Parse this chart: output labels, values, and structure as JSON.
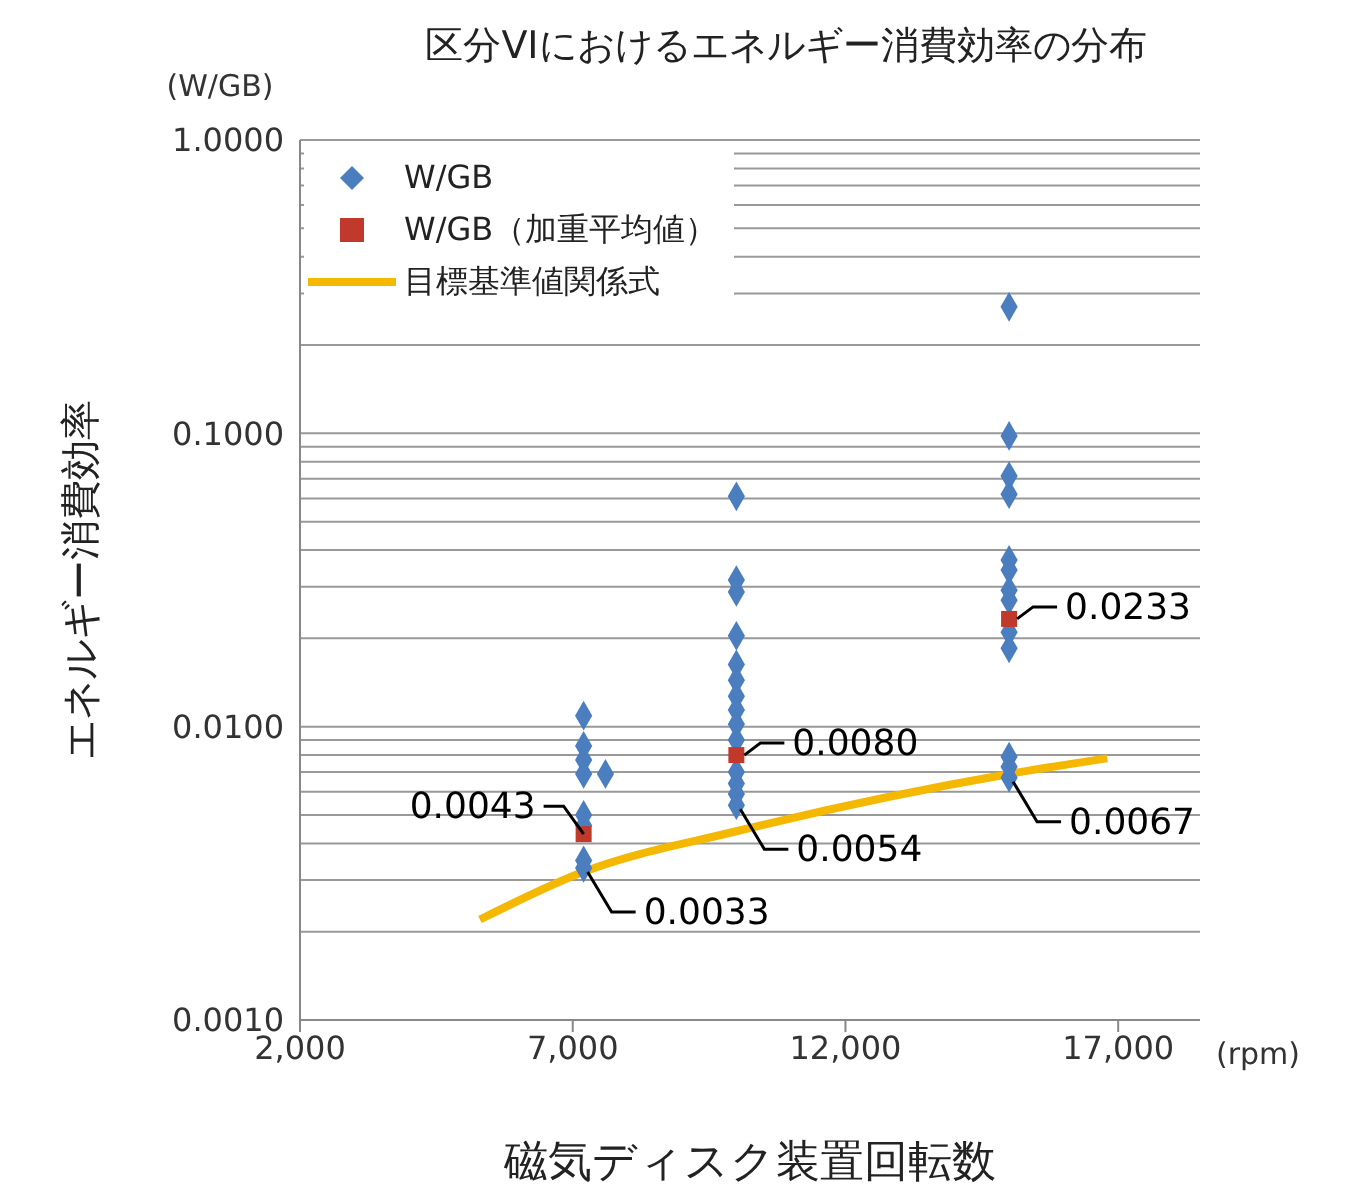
{
  "chart_data": {
    "type": "scatter",
    "title": "区分VIにおけるエネルギー消費効率の分布",
    "xlabel": "磁気ディスク装置回転数",
    "ylabel": "エネルギー消費効率",
    "log": "y",
    "grid": "y",
    "legend": "top left",
    "xlim": [
      2000,
      18500
    ],
    "xticks": [
      {
        "value": 2000,
        "label": "2,000"
      },
      {
        "value": 7000,
        "label": "7,000"
      },
      {
        "value": 12000,
        "label": "12,000"
      },
      {
        "value": 17000,
        "label": "17,000"
      }
    ],
    "ylim": [
      0.001,
      1
    ],
    "yticks": [
      {
        "value": 0.001,
        "label": "0.0010"
      },
      {
        "value": 0.002,
        "label": null
      },
      {
        "value": 0.003,
        "label": null
      },
      {
        "value": 0.004,
        "label": null
      },
      {
        "value": 0.005,
        "label": null
      },
      {
        "value": 0.006,
        "label": null
      },
      {
        "value": 0.007,
        "label": null
      },
      {
        "value": 0.008,
        "label": null
      },
      {
        "value": 0.009,
        "label": null
      },
      {
        "value": 0.01,
        "label": "0.0100"
      },
      {
        "value": 0.02,
        "label": null
      },
      {
        "value": 0.03,
        "label": null
      },
      {
        "value": 0.04,
        "label": null
      },
      {
        "value": 0.05,
        "label": null
      },
      {
        "value": 0.06,
        "label": null
      },
      {
        "value": 0.07,
        "label": null
      },
      {
        "value": 0.08,
        "label": null
      },
      {
        "value": 0.09,
        "label": null
      },
      {
        "value": 0.1,
        "label": "0.1000"
      },
      {
        "value": 0.2,
        "label": null
      },
      {
        "value": 0.3,
        "label": null
      },
      {
        "value": 0.4,
        "label": null
      },
      {
        "value": 0.5,
        "label": null
      },
      {
        "value": 0.6,
        "label": null
      },
      {
        "value": 0.7,
        "label": null
      },
      {
        "value": 0.8,
        "label": null
      },
      {
        "value": 0.9,
        "label": null
      },
      {
        "value": 1,
        "label": "1.0000"
      }
    ],
    "series": [
      {
        "name": "W/GB",
        "marker": "diamond",
        "color": "#4a7ebf",
        "x": [
          7200,
          7200,
          7200,
          7200,
          7600,
          7200,
          7200,
          7200,
          7200,
          10000,
          10000,
          10000,
          10000,
          10000,
          10000,
          10000,
          10000,
          10000,
          10000,
          10000,
          10000,
          10000,
          10000,
          15000,
          15000,
          15000,
          15000,
          15000,
          15000,
          15000,
          15000,
          15000,
          15000,
          15000,
          15000,
          15000
        ],
        "values": [
          0.0109,
          0.0086,
          0.0077,
          0.0069,
          0.0069,
          0.005,
          0.0046,
          0.0035,
          0.0033,
          0.061,
          0.0316,
          0.0288,
          0.0204,
          0.0163,
          0.0144,
          0.0127,
          0.0114,
          0.0102,
          0.009,
          0.007,
          0.0064,
          0.0059,
          0.0054,
          0.27,
          0.098,
          0.0715,
          0.062,
          0.037,
          0.0342,
          0.0292,
          0.027,
          0.021,
          0.0185,
          0.0079,
          0.0073,
          0.0067
        ]
      },
      {
        "name": "W/GB（加重平均値）",
        "marker": "square",
        "color": "#c0392b",
        "x": [
          7200,
          10000,
          15000
        ],
        "values": [
          0.0043,
          0.008,
          0.0233
        ]
      },
      {
        "name": "目標基準値関係式",
        "type": "line",
        "marker": "none",
        "color": "#f5b800",
        "x": [
          5300,
          7200,
          10000,
          15000,
          16800
        ],
        "values": [
          0.0022,
          0.0032,
          0.0044,
          0.0069,
          0.0078
        ]
      }
    ],
    "annotations": [
      "(W/GB)",
      "(rpm)",
      {
        "text": "0.0043",
        "x": 7200,
        "y": 0.0043
      },
      {
        "text": "0.0033",
        "x": 7200,
        "y": 0.0033
      },
      {
        "text": "0.0080",
        "x": 10000,
        "y": 0.008
      },
      {
        "text": "0.0054",
        "x": 10000,
        "y": 0.0054
      },
      {
        "text": "0.0233",
        "x": 15000,
        "y": 0.0233
      },
      {
        "text": "0.0067",
        "x": 15000,
        "y": 0.0067
      }
    ]
  }
}
